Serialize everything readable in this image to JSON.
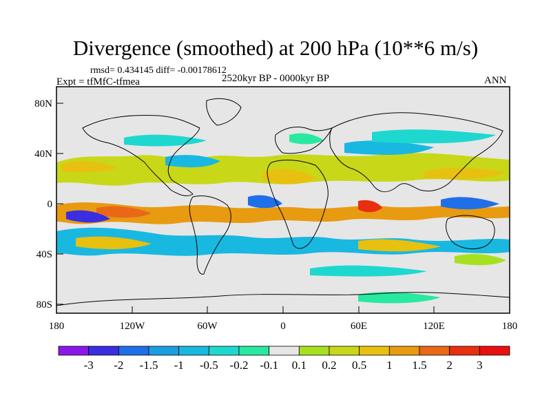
{
  "title": "Divergence (smoothed) at 200 hPa (10**6 m/s)",
  "stats": "rmsd= 0.434145 diff= -0.00178612",
  "experiment": "Expt = tfMfC-tfmea",
  "period": "2520kyr BP - 0000kyr BP",
  "season": "ANN",
  "axes": {
    "lat_ticks": [
      "80N",
      "40N",
      "0",
      "40S",
      "80S"
    ],
    "lon_ticks": [
      "180",
      "120W",
      "60W",
      "0",
      "60E",
      "120E",
      "180"
    ]
  },
  "colorbar": {
    "colors": [
      "#8a18e8",
      "#3a2ee0",
      "#1f6fe8",
      "#1a9ee0",
      "#19b8e0",
      "#1ed8d0",
      "#29e8a0",
      "#e6e6e6",
      "#a8e020",
      "#c8d818",
      "#e8c010",
      "#e89a10",
      "#e86818",
      "#e83010",
      "#e81010"
    ],
    "labels": [
      "-3",
      "-2",
      "-1.5",
      "-1",
      "-0.5",
      "-0.2",
      "-0.1",
      "0.1",
      "0.2",
      "0.5",
      "1",
      "1.5",
      "2",
      "3"
    ]
  }
}
